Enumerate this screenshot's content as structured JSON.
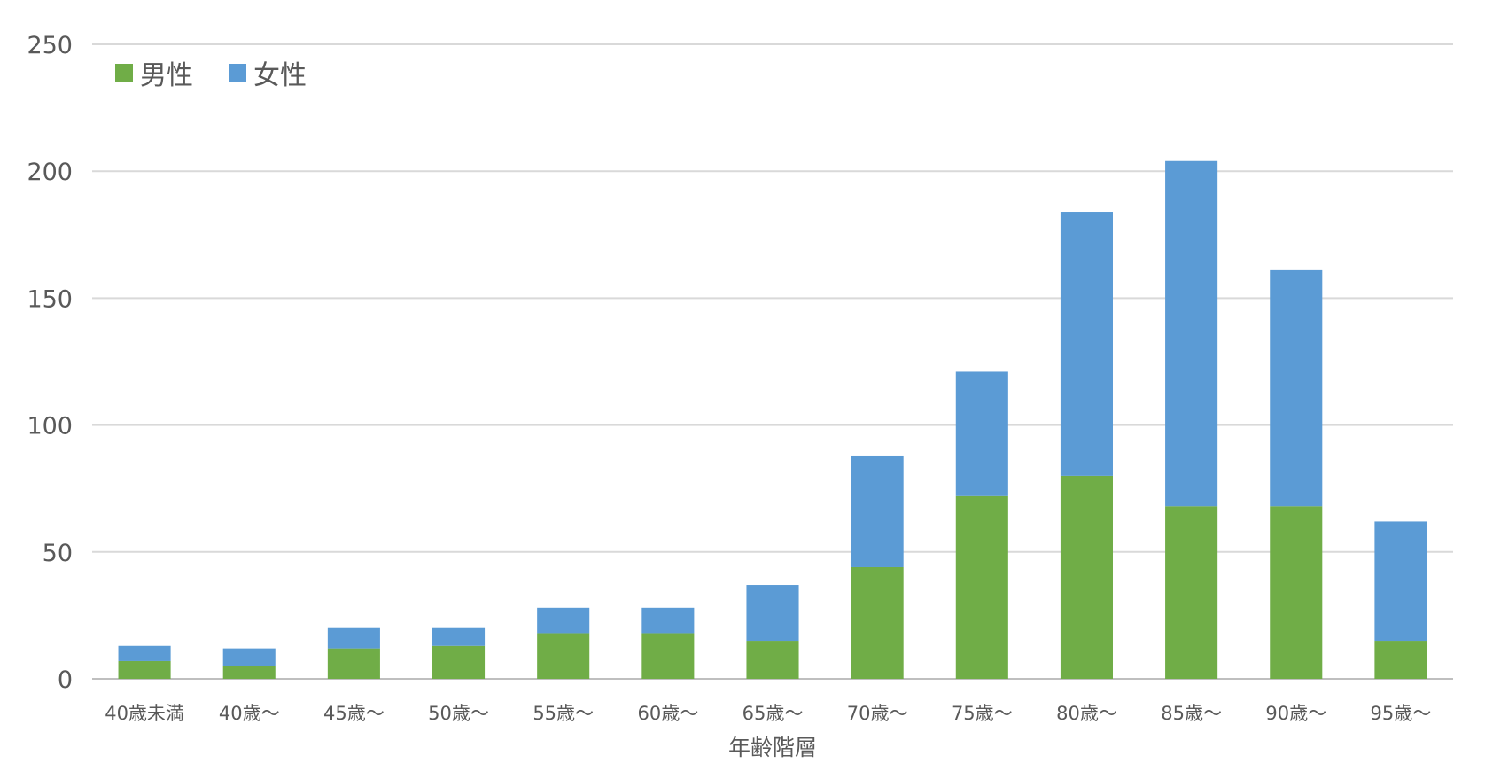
{
  "chart_data": {
    "type": "bar",
    "stacked": true,
    "title": "",
    "xlabel": "年齢階層",
    "ylabel": "",
    "ylim": [
      0,
      250
    ],
    "yticks": [
      0,
      50,
      100,
      150,
      200,
      250
    ],
    "grid": true,
    "legend_position": "top-left",
    "categories": [
      "40歳未満",
      "40歳～",
      "45歳～",
      "50歳～",
      "55歳～",
      "60歳～",
      "65歳～",
      "70歳～",
      "75歳～",
      "80歳～",
      "85歳～",
      "90歳～",
      "95歳～"
    ],
    "series": [
      {
        "name": "男性",
        "color": "#70ad47",
        "values": [
          7,
          5,
          12,
          13,
          18,
          18,
          15,
          44,
          72,
          80,
          68,
          68,
          15
        ]
      },
      {
        "name": "女性",
        "color": "#5b9bd5",
        "values": [
          6,
          7,
          8,
          7,
          10,
          10,
          22,
          44,
          49,
          104,
          136,
          93,
          47
        ]
      }
    ]
  }
}
